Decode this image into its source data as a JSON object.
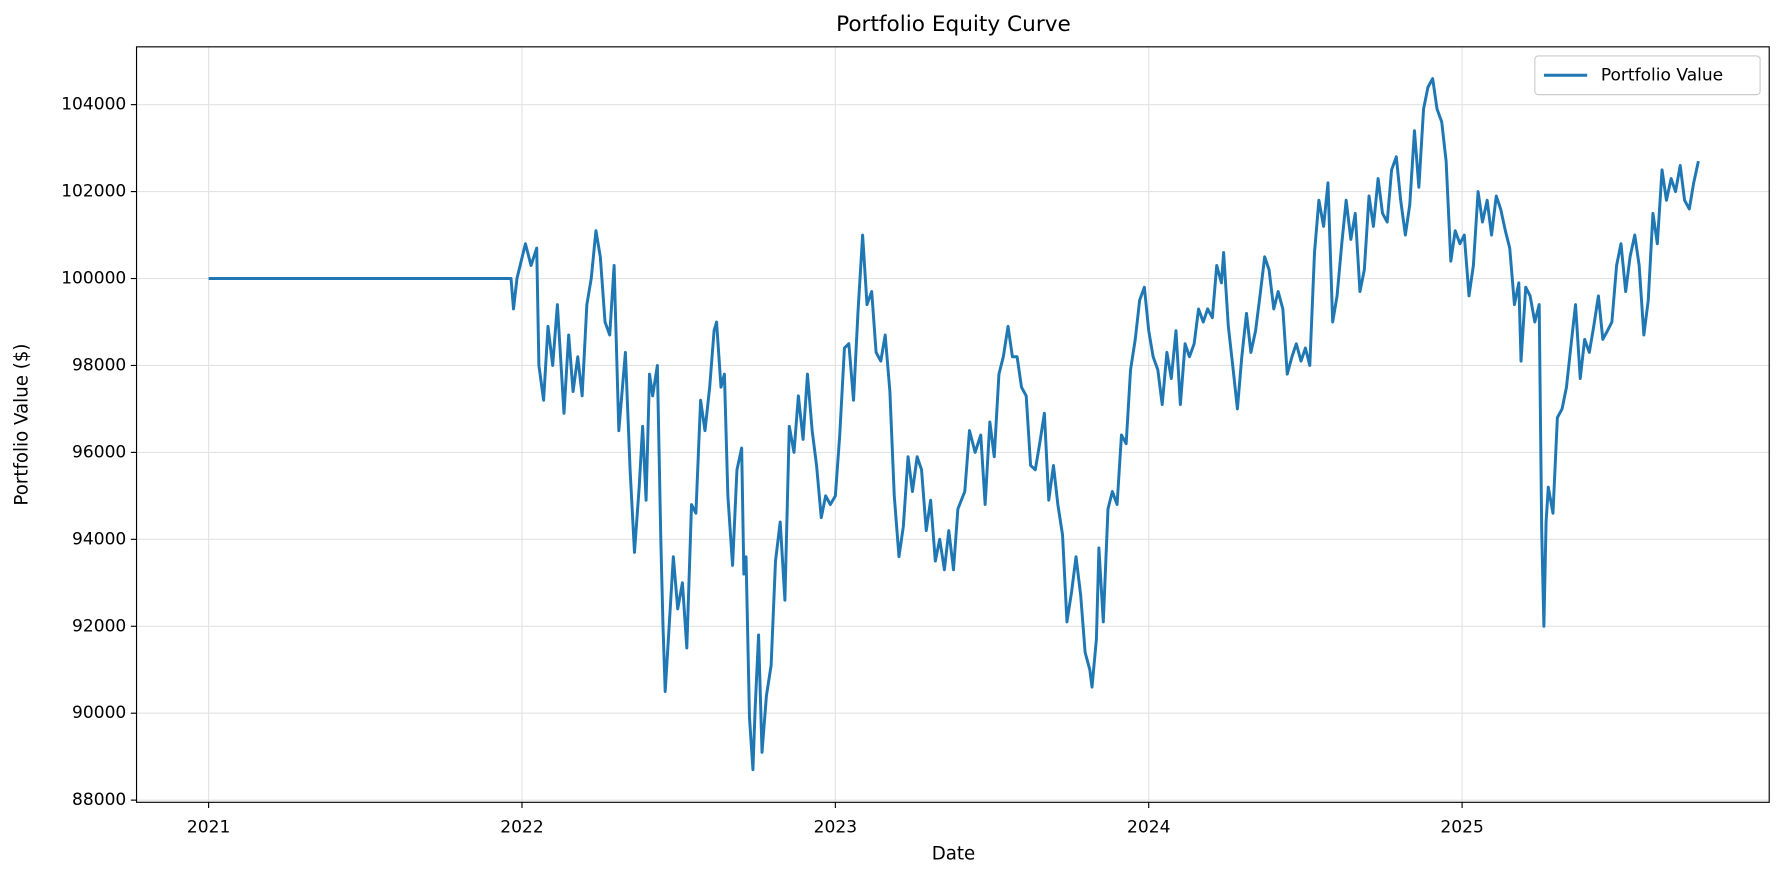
{
  "chart_data": {
    "type": "line",
    "title": "Portfolio Equity Curve",
    "xlabel": "Date",
    "ylabel": "Portfolio Value ($)",
    "x": [
      2021.0,
      2021.965,
      2021.973,
      2021.984,
      2022.011,
      2022.029,
      2022.047,
      2022.054,
      2022.069,
      2022.083,
      2022.098,
      2022.113,
      2022.134,
      2022.149,
      2022.163,
      2022.178,
      2022.192,
      2022.207,
      2022.221,
      2022.236,
      2022.25,
      2022.265,
      2022.28,
      2022.294,
      2022.309,
      2022.33,
      2022.345,
      2022.359,
      2022.374,
      2022.385,
      2022.396,
      2022.407,
      2022.417,
      2022.432,
      2022.443,
      2022.45,
      2022.457,
      2022.468,
      2022.483,
      2022.497,
      2022.512,
      2022.526,
      2022.541,
      2022.555,
      2022.57,
      2022.584,
      2022.599,
      2022.613,
      2022.621,
      2022.635,
      2022.646,
      2022.657,
      2022.672,
      2022.686,
      2022.701,
      2022.708,
      2022.715,
      2022.726,
      2022.737,
      2022.744,
      2022.755,
      2022.766,
      2022.78,
      2022.795,
      2022.809,
      2022.824,
      2022.839,
      2022.853,
      2022.868,
      2022.882,
      2022.897,
      2022.911,
      2022.926,
      2022.94,
      2022.955,
      2022.969,
      2022.984,
      2023.0,
      2023.014,
      2023.029,
      2023.043,
      2023.058,
      2023.072,
      2023.087,
      2023.101,
      2023.116,
      2023.13,
      2023.145,
      2023.159,
      2023.174,
      2023.188,
      2023.203,
      2023.217,
      2023.232,
      2023.246,
      2023.261,
      2023.275,
      2023.29,
      2023.304,
      2023.319,
      2023.333,
      2023.348,
      2023.362,
      2023.377,
      2023.391,
      2023.413,
      2023.428,
      2023.446,
      2023.464,
      2023.478,
      2023.493,
      2023.507,
      2023.522,
      2023.536,
      2023.551,
      2023.565,
      2023.58,
      2023.594,
      2023.609,
      2023.623,
      2023.638,
      2023.652,
      2023.667,
      2023.681,
      2023.696,
      2023.71,
      2023.725,
      2023.739,
      2023.754,
      2023.768,
      2023.783,
      2023.797,
      2023.812,
      2023.819,
      2023.833,
      2023.841,
      2023.855,
      2023.87,
      2023.884,
      2023.899,
      2023.913,
      2023.928,
      2023.942,
      2023.957,
      2023.971,
      2023.986,
      2024.0,
      2024.014,
      2024.029,
      2024.043,
      2024.058,
      2024.072,
      2024.087,
      2024.101,
      2024.116,
      2024.13,
      2024.145,
      2024.159,
      2024.174,
      2024.188,
      2024.203,
      2024.217,
      2024.232,
      2024.239,
      2024.254,
      2024.268,
      2024.283,
      2024.297,
      2024.312,
      2024.326,
      2024.341,
      2024.355,
      2024.37,
      2024.384,
      2024.399,
      2024.413,
      2024.428,
      2024.442,
      2024.457,
      2024.471,
      2024.486,
      2024.5,
      2024.514,
      2024.529,
      2024.543,
      2024.558,
      2024.572,
      2024.587,
      2024.601,
      2024.616,
      2024.63,
      2024.645,
      2024.659,
      2024.674,
      2024.688,
      2024.703,
      2024.717,
      2024.732,
      2024.746,
      2024.761,
      2024.775,
      2024.79,
      2024.804,
      2024.819,
      2024.833,
      2024.848,
      2024.862,
      2024.877,
      2024.891,
      2024.906,
      2024.92,
      2024.935,
      2024.949,
      2024.964,
      2024.978,
      2024.993,
      2025.007,
      2025.022,
      2025.036,
      2025.051,
      2025.065,
      2025.08,
      2025.094,
      2025.109,
      2025.123,
      2025.138,
      2025.152,
      2025.167,
      2025.181,
      2025.188,
      2025.203,
      2025.217,
      2025.232,
      2025.246,
      2025.254,
      2025.261,
      2025.268,
      2025.275,
      2025.29,
      2025.304,
      2025.319,
      2025.333,
      2025.348,
      2025.362,
      2025.377,
      2025.391,
      2025.406,
      2025.42,
      2025.435,
      2025.449,
      2025.464,
      2025.478,
      2025.493,
      2025.507,
      2025.522,
      2025.536,
      2025.551,
      2025.565,
      2025.58,
      2025.594,
      2025.609,
      2025.623,
      2025.638,
      2025.652,
      2025.667,
      2025.681,
      2025.696,
      2025.71,
      2025.725,
      2025.739,
      2025.754
    ],
    "series": [
      {
        "name": "Portfolio Value",
        "color": "#1f77b4",
        "values": [
          100000,
          100000,
          99300,
          100000,
          100800,
          100300,
          100700,
          98000,
          97200,
          98900,
          98000,
          99400,
          96900,
          98700,
          97400,
          98200,
          97300,
          99400,
          100000,
          101100,
          100500,
          99000,
          98700,
          100300,
          96500,
          98300,
          95600,
          93700,
          95200,
          96600,
          94900,
          97800,
          97300,
          98000,
          94000,
          92000,
          90500,
          91800,
          93600,
          92400,
          93000,
          91500,
          94800,
          94600,
          97200,
          96500,
          97500,
          98800,
          99000,
          97500,
          97800,
          95000,
          93400,
          95600,
          96100,
          93200,
          93600,
          89900,
          88700,
          90100,
          91800,
          89100,
          90400,
          91100,
          93500,
          94400,
          92600,
          96600,
          96000,
          97300,
          96300,
          97800,
          96500,
          95700,
          94500,
          95000,
          94800,
          95000,
          96400,
          98400,
          98500,
          97200,
          99200,
          101000,
          99400,
          99700,
          98300,
          98100,
          98700,
          97400,
          95000,
          93600,
          94300,
          95900,
          95100,
          95900,
          95600,
          94200,
          94900,
          93500,
          94000,
          93300,
          94200,
          93300,
          94700,
          95100,
          96500,
          96000,
          96400,
          94800,
          96700,
          95900,
          97800,
          98200,
          98900,
          98200,
          98200,
          97500,
          97300,
          95700,
          95600,
          96200,
          96900,
          94900,
          95700,
          94800,
          94100,
          92100,
          92800,
          93600,
          92700,
          91400,
          91000,
          90600,
          91700,
          93800,
          92100,
          94700,
          95100,
          94800,
          96400,
          96200,
          97900,
          98600,
          99500,
          99800,
          98800,
          98200,
          97900,
          97100,
          98300,
          97700,
          98800,
          97100,
          98500,
          98200,
          98500,
          99300,
          99000,
          99300,
          99100,
          100300,
          99900,
          100600,
          98900,
          98000,
          97000,
          98200,
          99200,
          98300,
          98800,
          99600,
          100500,
          100200,
          99300,
          99700,
          99300,
          97800,
          98200,
          98500,
          98100,
          98400,
          98000,
          100600,
          101800,
          101200,
          102200,
          99000,
          99600,
          100800,
          101800,
          100900,
          101500,
          99700,
          100200,
          101900,
          101200,
          102300,
          101500,
          101300,
          102500,
          102800,
          101800,
          101000,
          101700,
          103400,
          102100,
          103900,
          104400,
          104600,
          103900,
          103600,
          102700,
          100400,
          101100,
          100800,
          101000,
          99600,
          100300,
          102000,
          101300,
          101800,
          101000,
          101900,
          101600,
          101100,
          100700,
          99400,
          99900,
          98100,
          99800,
          99600,
          99000,
          99400,
          94200,
          92000,
          94400,
          95200,
          94600,
          96800,
          97000,
          97500,
          98500,
          99400,
          97700,
          98600,
          98300,
          98900,
          99600,
          98600,
          98800,
          99000,
          100300,
          100800,
          99700,
          100500,
          101000,
          100300,
          98700,
          99500,
          101500,
          100800,
          102500,
          101800,
          102300,
          102000,
          102600,
          101800,
          101600,
          102200,
          102700
        ]
      }
    ],
    "xlim": [
      2020.77,
      2025.98
    ],
    "xticks": [
      2021,
      2022,
      2023,
      2024,
      2025
    ],
    "ylim": [
      87950,
      105330
    ],
    "yticks": [
      88000,
      90000,
      92000,
      94000,
      96000,
      98000,
      100000,
      102000,
      104000
    ],
    "grid": true,
    "legend": "upper right"
  }
}
